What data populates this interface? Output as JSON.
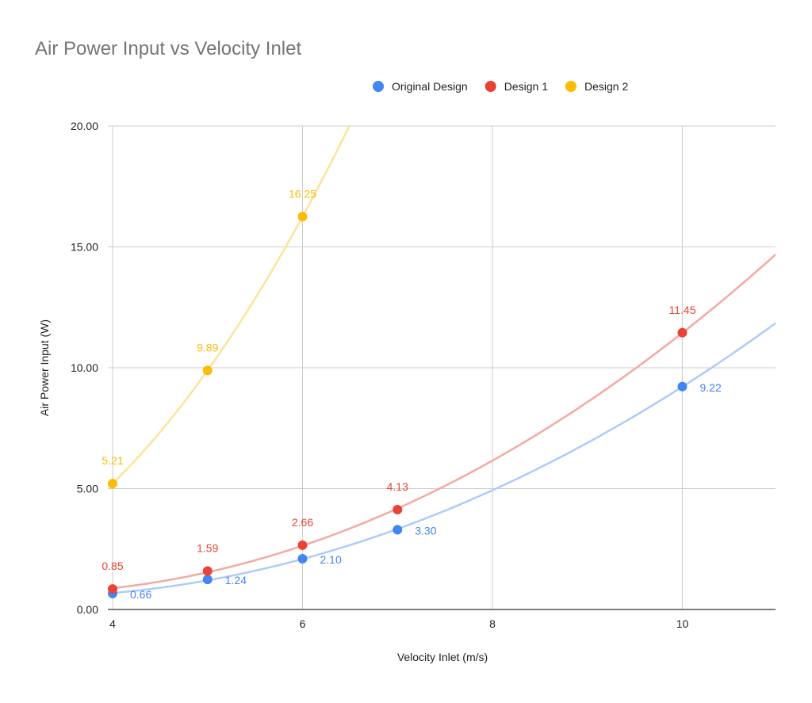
{
  "chart_data": {
    "type": "scatter",
    "title": "Air Power Input vs Velocity Inlet",
    "xlabel": "Velocity Inlet (m/s)",
    "ylabel": "Air Power Input (W)",
    "xlim": [
      4,
      11
    ],
    "ylim": [
      0,
      20
    ],
    "x_ticks": [
      "4",
      "6",
      "8",
      "10"
    ],
    "x_tick_values": [
      4,
      6,
      8,
      10
    ],
    "y_ticks": [
      "0.00",
      "5.00",
      "10.00",
      "15.00",
      "20.00"
    ],
    "y_tick_values": [
      0,
      5,
      10,
      15,
      20
    ],
    "grid": true,
    "legend_position": "top",
    "trendline": "polynomial",
    "series": [
      {
        "name": "Original Design",
        "color": "#4285F4",
        "trend_color": "#AECBFA",
        "x": [
          4,
          5,
          6,
          7,
          10
        ],
        "y": [
          0.66,
          1.24,
          2.1,
          3.3,
          9.22
        ],
        "labels": [
          "0.66",
          "1.24",
          "2.10",
          "3.30",
          "9.22"
        ],
        "label_position": "right"
      },
      {
        "name": "Design 1",
        "color": "#EA4335",
        "trend_color": "#F4A9A3",
        "x": [
          4,
          5,
          6,
          7,
          10
        ],
        "y": [
          0.85,
          1.59,
          2.66,
          4.13,
          11.45
        ],
        "labels": [
          "0.85",
          "1.59",
          "2.66",
          "4.13",
          "11.45"
        ],
        "label_position": "above"
      },
      {
        "name": "Design 2",
        "color": "#FBBC04",
        "trend_color": "#FCE49A",
        "x": [
          4,
          5,
          6
        ],
        "y": [
          5.21,
          9.89,
          16.25
        ],
        "labels": [
          "5.21",
          "9.89",
          "16.25"
        ],
        "label_position": "above"
      }
    ]
  }
}
